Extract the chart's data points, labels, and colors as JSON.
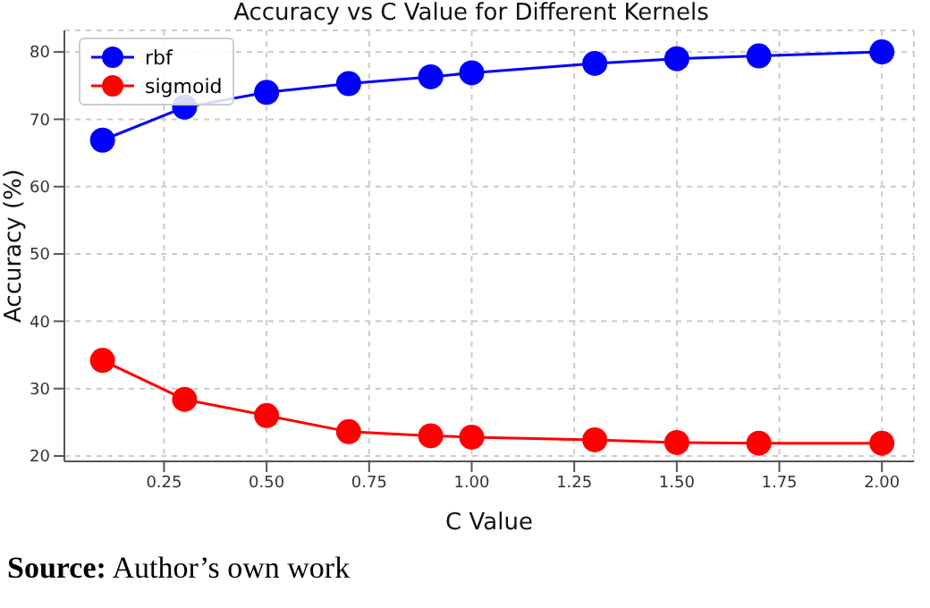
{
  "chart_data": {
    "type": "line",
    "title": "Accuracy vs C Value for Different Kernels",
    "xlabel": "C Value",
    "ylabel": "Accuracy (%)",
    "x": [
      0.1,
      0.3,
      0.5,
      0.7,
      0.9,
      1.0,
      1.3,
      1.5,
      1.7,
      2.0
    ],
    "series": [
      {
        "name": "rbf",
        "color": "#0000ff",
        "values": [
          66.9,
          71.8,
          74.0,
          75.3,
          76.3,
          76.9,
          78.3,
          79.0,
          79.4,
          80.0
        ]
      },
      {
        "name": "sigmoid",
        "color": "#ff0000",
        "values": [
          34.2,
          28.4,
          26.0,
          23.6,
          23.0,
          22.8,
          22.4,
          22.0,
          21.9,
          21.9
        ]
      }
    ],
    "xlim": [
      0.007,
      2.078
    ],
    "xticks": [
      {
        "value": 0.25,
        "label": "0.25"
      },
      {
        "value": 0.5,
        "label": "0.50"
      },
      {
        "value": 0.75,
        "label": "0.75"
      },
      {
        "value": 1,
        "label": "1.00"
      },
      {
        "value": 1.25,
        "label": "1.25"
      },
      {
        "value": 1.5,
        "label": "1.50"
      },
      {
        "value": 1.75,
        "label": "1.75"
      },
      {
        "value": 2,
        "label": "2.00"
      }
    ],
    "ylim": [
      19.2,
      83.2
    ],
    "yticks": [
      20,
      30,
      40,
      50,
      60,
      70,
      80
    ],
    "grid": true,
    "legend": "top left",
    "marker": "circle",
    "line_style": "solid",
    "annotations": [
      "Source: Author’s own work"
    ]
  }
}
